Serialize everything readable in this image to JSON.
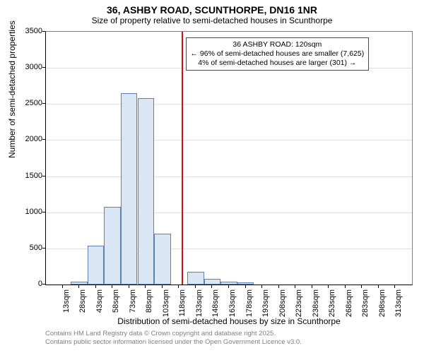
{
  "title": "36, ASHBY ROAD, SCUNTHORPE, DN16 1NR",
  "subtitle": "Size of property relative to semi-detached houses in Scunthorpe",
  "y_axis_label": "Number of semi-detached properties",
  "x_axis_label": "Distribution of semi-detached houses by size in Scunthorpe",
  "footer_line1": "Contains HM Land Registry data © Crown copyright and database right 2025.",
  "footer_line2": "Contains public sector information licensed under the Open Government Licence v3.0.",
  "chart": {
    "type": "histogram",
    "ylim": [
      0,
      3500
    ],
    "ytick_step": 500,
    "x_start": 13,
    "x_step": 15,
    "x_count": 21,
    "x_unit": "sqm",
    "values": [
      0,
      40,
      540,
      1080,
      2650,
      2580,
      700,
      0,
      180,
      80,
      40,
      30,
      0,
      0,
      0,
      0,
      0,
      0,
      0,
      0,
      0
    ],
    "bar_fill": "#dbe6f5",
    "bar_stroke": "#6080b0",
    "grid_color": "#e0e0e0",
    "background": "#ffffff"
  },
  "marker": {
    "position_sqm": 120,
    "color": "#d01010",
    "line1": "36 ASHBY ROAD: 120sqm",
    "line2": "← 96% of semi-detached houses are smaller (7,625)",
    "line3": "4% of semi-detached houses are larger (301) →"
  }
}
